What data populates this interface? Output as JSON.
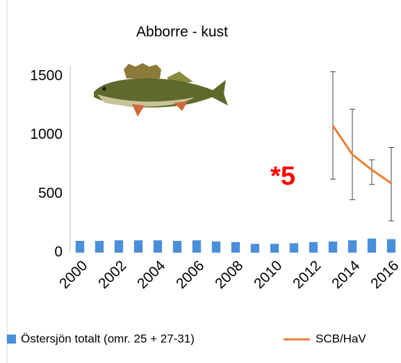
{
  "chart_data": {
    "type": "bar",
    "title": "Abborre - kust",
    "annotation": "*5",
    "categories": [
      "2000",
      null,
      "2002",
      null,
      "2004",
      null,
      "2006",
      null,
      "2008",
      null,
      "2010",
      null,
      "2012",
      null,
      "2014",
      null,
      "2016"
    ],
    "series": [
      {
        "name": "Östersjön totalt (omr. 25 + 27-31)",
        "color": "#4a8fd9",
        "type": "bar",
        "values": [
          100,
          100,
          105,
          105,
          105,
          100,
          105,
          95,
          90,
          75,
          75,
          80,
          90,
          95,
          105,
          120,
          115
        ]
      },
      {
        "name": "SCB/HaV",
        "color": "#ed7d31",
        "type": "line",
        "values": [
          null,
          null,
          null,
          null,
          null,
          null,
          null,
          null,
          null,
          null,
          null,
          null,
          null,
          1080,
          835,
          705,
          590
        ],
        "lower": [
          null,
          null,
          null,
          null,
          null,
          null,
          null,
          null,
          null,
          null,
          null,
          null,
          null,
          625,
          450,
          580,
          270
        ],
        "upper": [
          null,
          null,
          null,
          null,
          null,
          null,
          null,
          null,
          null,
          null,
          null,
          null,
          null,
          1540,
          1220,
          790,
          895
        ]
      }
    ],
    "ylim": [
      0,
      1500
    ],
    "yticks": [
      0,
      500,
      1000,
      1500
    ]
  }
}
